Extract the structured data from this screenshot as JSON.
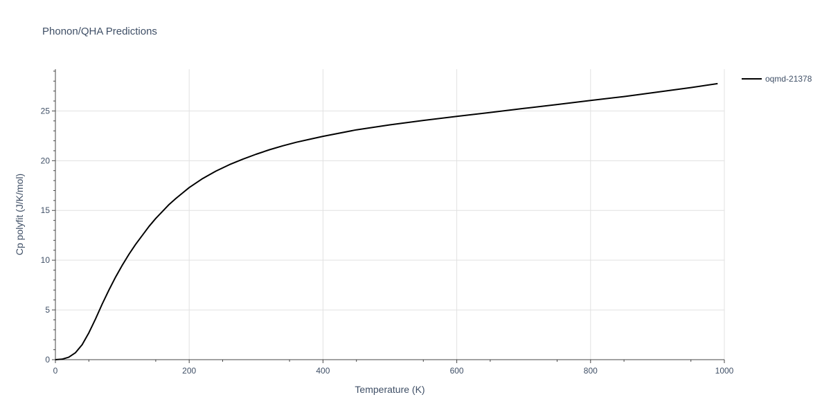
{
  "title": "Phonon/QHA Predictions",
  "chart_data": {
    "type": "line",
    "title": "Phonon/QHA Predictions",
    "xlabel": "Temperature (K)",
    "ylabel": "Cp polyfit (J/K/mol)",
    "xlim": [
      0,
      1000
    ],
    "ylim": [
      0,
      29.2
    ],
    "x_ticks": [
      0,
      200,
      400,
      600,
      800,
      1000
    ],
    "y_ticks": [
      0,
      5,
      10,
      15,
      20,
      25
    ],
    "grid": true,
    "legend_position": "top-right",
    "series": [
      {
        "name": "oqmd-21378",
        "color": "#000000",
        "x": [
          0,
          10,
          20,
          30,
          40,
          50,
          60,
          70,
          80,
          90,
          100,
          110,
          120,
          130,
          140,
          150,
          160,
          170,
          180,
          190,
          200,
          220,
          240,
          260,
          280,
          300,
          320,
          340,
          360,
          380,
          400,
          450,
          500,
          550,
          600,
          650,
          700,
          750,
          800,
          850,
          900,
          950,
          990
        ],
        "y": [
          0,
          0.05,
          0.25,
          0.7,
          1.5,
          2.7,
          4.1,
          5.6,
          7.0,
          8.3,
          9.5,
          10.6,
          11.6,
          12.5,
          13.4,
          14.2,
          14.9,
          15.6,
          16.2,
          16.75,
          17.3,
          18.2,
          18.95,
          19.6,
          20.15,
          20.65,
          21.1,
          21.5,
          21.85,
          22.15,
          22.45,
          23.1,
          23.6,
          24.05,
          24.45,
          24.85,
          25.25,
          25.65,
          26.05,
          26.45,
          26.9,
          27.35,
          27.75
        ]
      }
    ]
  }
}
